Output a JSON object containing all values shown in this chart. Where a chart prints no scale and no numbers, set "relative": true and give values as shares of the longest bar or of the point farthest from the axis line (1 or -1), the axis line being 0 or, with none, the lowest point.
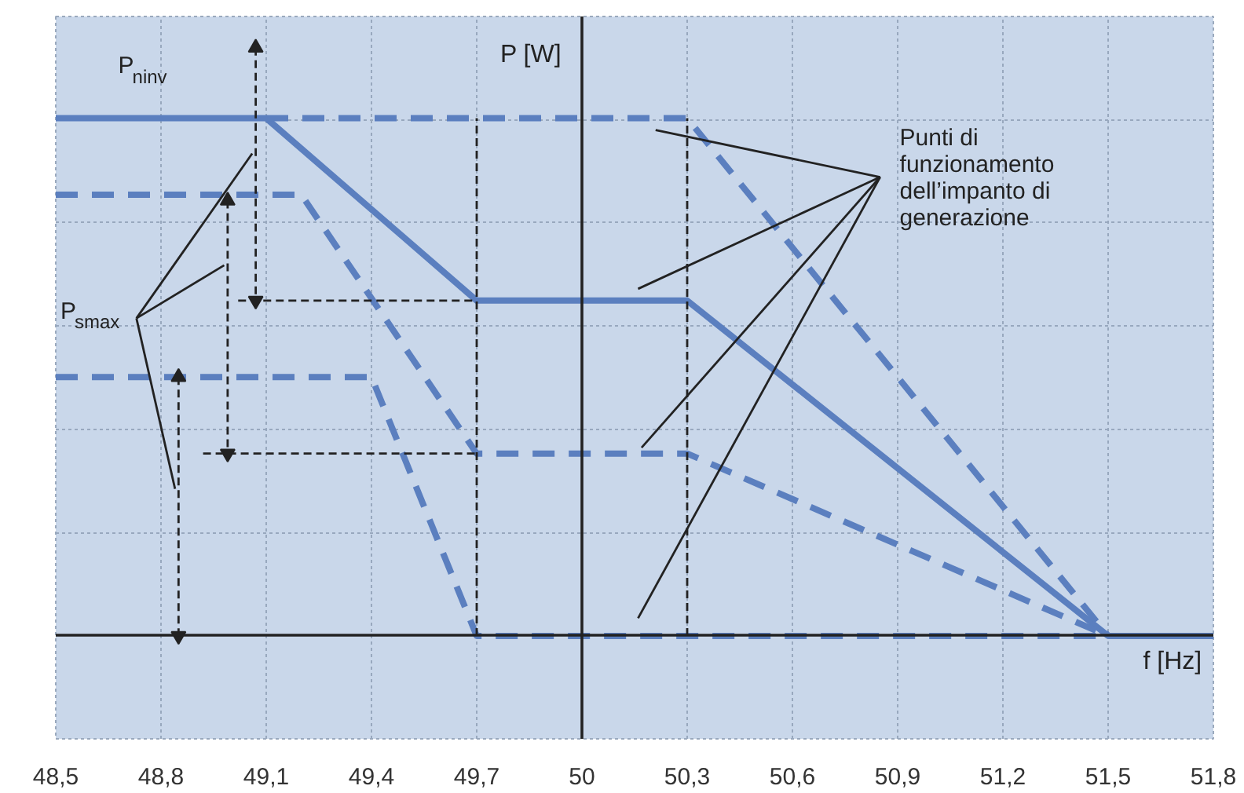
{
  "chart_data": {
    "type": "line",
    "relative": true,
    "grid": true,
    "xlabel": "f [Hz]",
    "ylabel": "P [W]",
    "xlim": [
      48.5,
      51.8
    ],
    "xticks": [
      {
        "value": 48.5,
        "label": "48,5"
      },
      {
        "value": 48.8,
        "label": "48,8"
      },
      {
        "value": 49.1,
        "label": "49,1"
      },
      {
        "value": 49.4,
        "label": "49,4"
      },
      {
        "value": 49.7,
        "label": "49,7"
      },
      50,
      {
        "value": 50.3,
        "label": "50,3"
      },
      {
        "value": 50.6,
        "label": "50,6"
      },
      {
        "value": 50.9,
        "label": "50,9"
      },
      {
        "value": 51.2,
        "label": "51,2"
      },
      {
        "value": 51.5,
        "label": "51,5"
      },
      {
        "value": 51.8,
        "label": "51,8"
      }
    ],
    "ref_lines": [
      {
        "axis": "x",
        "value": 50,
        "color": "#222222"
      }
    ],
    "series": [
      {
        "color": "#5b7fbf",
        "line_style": "solid",
        "x": [
          48.5,
          49.1,
          49.7,
          50.3,
          51.5,
          51.8
        ],
        "values": [
          0.88,
          0.88,
          0.57,
          0.57,
          0,
          0
        ]
      },
      {
        "color": "#5b7fbf",
        "line_style": "dashed",
        "x": [
          49.1,
          50.3,
          51.5
        ],
        "values": [
          0.88,
          0.88,
          0
        ]
      },
      {
        "color": "#5b7fbf",
        "line_style": "dashed",
        "x": [
          48.5,
          49.2,
          49.7,
          50.3,
          51.5
        ],
        "values": [
          0.75,
          0.75,
          0.31,
          0.31,
          0
        ]
      },
      {
        "color": "#5b7fbf",
        "line_style": "dashed",
        "x": [
          48.5,
          49.4,
          49.7,
          51.5
        ],
        "values": [
          0.44,
          0.44,
          0,
          0
        ]
      },
      {
        "color": "#222222",
        "line_style": "dashed",
        "x": [
          49.7,
          49.7
        ],
        "values": [
          0,
          0.88
        ]
      },
      {
        "color": "#222222",
        "line_style": "dashed",
        "x": [
          50.3,
          50.3
        ],
        "values": [
          0,
          0.88
        ]
      },
      {
        "color": "#222222",
        "line_style": "dashed",
        "x": [
          49.02,
          49.7
        ],
        "values": [
          0.57,
          0.57
        ]
      },
      {
        "color": "#222222",
        "line_style": "dashed",
        "x": [
          48.92,
          49.7
        ],
        "values": [
          0.31,
          0.31
        ]
      },
      {
        "color": "#222222",
        "line_style": "dashed",
        "marker": "triangle",
        "x": [
          49.07,
          49.07
        ],
        "values": [
          1,
          0.57
        ]
      },
      {
        "color": "#222222",
        "line_style": "dashed",
        "marker": "triangle",
        "x": [
          48.99,
          48.99
        ],
        "values": [
          0.74,
          0.31
        ]
      },
      {
        "color": "#222222",
        "line_style": "dashed",
        "marker": "triangle",
        "x": [
          48.85,
          48.85
        ],
        "values": [
          0.44,
          0
        ]
      },
      {
        "color": "#222222",
        "line_style": "solid",
        "x": [
          48.73,
          49.06
        ],
        "values": [
          0.54,
          0.82
        ]
      },
      {
        "color": "#222222",
        "line_style": "solid",
        "x": [
          48.73,
          48.98
        ],
        "values": [
          0.54,
          0.63
        ]
      },
      {
        "color": "#222222",
        "line_style": "solid",
        "x": [
          48.73,
          48.84
        ],
        "values": [
          0.54,
          0.25
        ]
      },
      {
        "color": "#222222",
        "line_style": "solid",
        "x": [
          50.85,
          50.21
        ],
        "values": [
          0.78,
          0.86
        ]
      },
      {
        "color": "#222222",
        "line_style": "solid",
        "x": [
          50.85,
          50.16
        ],
        "values": [
          0.78,
          0.59
        ]
      },
      {
        "color": "#222222",
        "line_style": "solid",
        "x": [
          50.85,
          50.17
        ],
        "values": [
          0.78,
          0.32
        ]
      },
      {
        "color": "#222222",
        "line_style": "solid",
        "x": [
          50.85,
          50.16
        ],
        "values": [
          0.78,
          0.03
        ]
      }
    ],
    "annotations": [
      "P$_{ninv}$",
      "P$_{smax}$",
      "Punti di\nfunzionamento\ndell’impanto di\ngenerazione"
    ]
  }
}
